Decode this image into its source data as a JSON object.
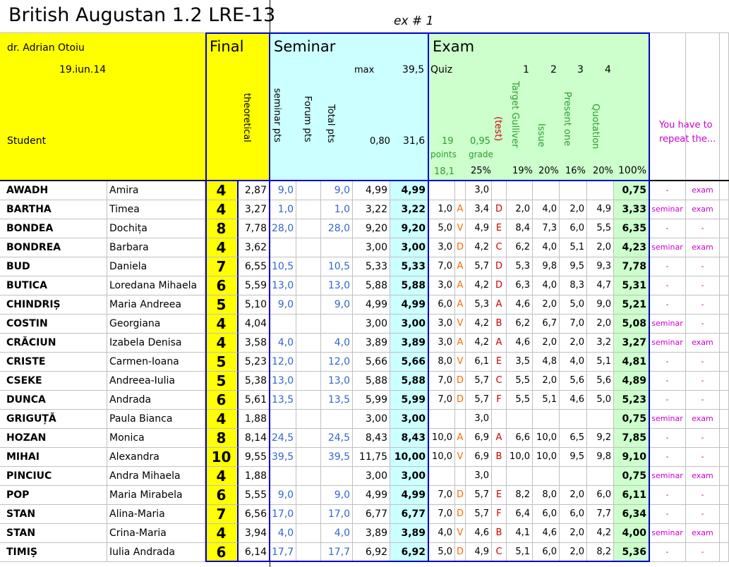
{
  "header": {
    "title": "British Augustan 1.2 LRE-13",
    "exercise": "ex # 1",
    "teacher": "dr. Adrian Otoiu",
    "date": "19.iun.14",
    "student_label": "Student",
    "final": "Final",
    "theoretical": "theoretical",
    "seminar": "Seminar",
    "max_label": "max",
    "max_value": "39,5",
    "seminar_pts": "seminar pts",
    "forum_pts": "Forum pts",
    "total_pts": "Total pts",
    "seminar_coef": "0,80",
    "seminar_total": "31,6",
    "exam": "Exam",
    "quiz": "Quiz",
    "items": [
      "1",
      "2",
      "3",
      "4"
    ],
    "quiz_points": "19",
    "points": "points",
    "quiz_avg": "18,1",
    "grade_coef": "0,95",
    "grade": "grade",
    "test": "(test)",
    "target": "Target Gulliver",
    "issue": "Issue",
    "present": "Present one",
    "quotation": "Quotation",
    "weights": [
      "25%",
      "19%",
      "20%",
      "16%",
      "20%",
      "100%"
    ],
    "repeat": "You have to repeat the..."
  },
  "rows": [
    [
      "AWADH",
      "Amira",
      "4",
      "2,87",
      "9,0",
      null,
      "9,0",
      "4,99",
      "4,99",
      null,
      null,
      "3,0",
      null,
      null,
      null,
      null,
      null,
      "0,75",
      "-",
      "exam"
    ],
    [
      "BARTHA",
      "Timea",
      "4",
      "3,27",
      "1,0",
      null,
      "1,0",
      "3,22",
      "3,22",
      "1,0",
      "A",
      "3,4",
      "D",
      "2,0",
      "4,0",
      "2,0",
      "4,9",
      "3,33",
      "seminar",
      "exam"
    ],
    [
      "BONDEA",
      "Dochița",
      "8",
      "7,78",
      "28,0",
      null,
      "28,0",
      "9,20",
      "9,20",
      "5,0",
      "V",
      "4,9",
      "E",
      "8,4",
      "7,3",
      "6,0",
      "5,5",
      "6,35",
      "-",
      "-"
    ],
    [
      "BONDREA",
      "Barbara",
      "4",
      "3,62",
      null,
      null,
      null,
      "3,00",
      "3,00",
      "3,0",
      "D",
      "4,2",
      "C",
      "6,2",
      "4,0",
      "5,1",
      "2,0",
      "4,23",
      "seminar",
      "exam"
    ],
    [
      "BUD",
      "Daniela",
      "7",
      "6,55",
      "10,5",
      null,
      "10,5",
      "5,33",
      "5,33",
      "7,0",
      "A",
      "5,7",
      "D",
      "5,3",
      "9,8",
      "9,5",
      "9,3",
      "7,78",
      "-",
      "-"
    ],
    [
      "BUTICA",
      "Loredana Mihaela",
      "6",
      "5,59",
      "13,0",
      null,
      "13,0",
      "5,88",
      "5,88",
      "3,0",
      "A",
      "4,2",
      "D",
      "6,3",
      "4,0",
      "8,3",
      "4,7",
      "5,31",
      "-",
      "-"
    ],
    [
      "CHINDRIȘ",
      "Maria Andreea",
      "5",
      "5,10",
      "9,0",
      null,
      "9,0",
      "4,99",
      "4,99",
      "6,0",
      "A",
      "5,3",
      "A",
      "4,6",
      "2,0",
      "5,0",
      "9,0",
      "5,21",
      "-",
      "-"
    ],
    [
      "COSTIN",
      "Georgiana",
      "4",
      "4,04",
      null,
      null,
      null,
      "3,00",
      "3,00",
      "3,0",
      "V",
      "4,2",
      "B",
      "6,2",
      "6,7",
      "7,0",
      "2,0",
      "5,08",
      "seminar",
      "-"
    ],
    [
      "CRĂCIUN",
      "Izabela Denisa",
      "4",
      "3,58",
      "4,0",
      null,
      "4,0",
      "3,89",
      "3,89",
      "3,0",
      "A",
      "4,2",
      "A",
      "4,6",
      "2,0",
      "2,0",
      "3,2",
      "3,27",
      "seminar",
      "exam"
    ],
    [
      "CRISTE",
      "Carmen-Ioana",
      "5",
      "5,23",
      "12,0",
      null,
      "12,0",
      "5,66",
      "5,66",
      "8,0",
      "V",
      "6,1",
      "E",
      "3,5",
      "4,8",
      "4,0",
      "5,1",
      "4,81",
      "-",
      "-"
    ],
    [
      "CSEKE",
      "Andreea-Iulia",
      "5",
      "5,38",
      "13,0",
      null,
      "13,0",
      "5,88",
      "5,88",
      "7,0",
      "D",
      "5,7",
      "C",
      "5,5",
      "2,0",
      "5,6",
      "5,6",
      "4,89",
      "-",
      "-"
    ],
    [
      "DUNCA",
      "Andrada",
      "6",
      "5,61",
      "13,5",
      null,
      "13,5",
      "5,99",
      "5,99",
      "7,0",
      "D",
      "5,7",
      "F",
      "5,5",
      "5,1",
      "4,6",
      "5,0",
      "5,23",
      "-",
      "-"
    ],
    [
      "GRIGUȚĂ",
      "Paula Bianca",
      "4",
      "1,88",
      null,
      null,
      null,
      "3,00",
      "3,00",
      null,
      null,
      "3,0",
      null,
      null,
      null,
      null,
      null,
      "0,75",
      "seminar",
      "exam"
    ],
    [
      "HOZAN",
      "Monica",
      "8",
      "8,14",
      "24,5",
      null,
      "24,5",
      "8,43",
      "8,43",
      "10,0",
      "A",
      "6,9",
      "A",
      "6,6",
      "10,0",
      "6,5",
      "9,2",
      "7,85",
      "-",
      "-"
    ],
    [
      "MIHAI",
      "Alexandra",
      "10",
      "9,55",
      "39,5",
      null,
      "39,5",
      "11,75",
      "10,00",
      "10,0",
      "V",
      "6,9",
      "B",
      "10,0",
      "10,0",
      "9,5",
      "9,8",
      "9,10",
      "-",
      "-"
    ],
    [
      "PINCIUC",
      "Andra Mihaela",
      "4",
      "1,88",
      null,
      null,
      null,
      "3,00",
      "3,00",
      null,
      null,
      "3,0",
      null,
      null,
      null,
      null,
      null,
      "0,75",
      "seminar",
      "exam"
    ],
    [
      "POP",
      "Maria Mirabela",
      "6",
      "5,55",
      "9,0",
      null,
      "9,0",
      "4,99",
      "4,99",
      "7,0",
      "D",
      "5,7",
      "E",
      "8,2",
      "8,0",
      "2,0",
      "6,0",
      "6,11",
      "-",
      "-"
    ],
    [
      "STAN",
      "Alina-Maria",
      "7",
      "6,56",
      "17,0",
      null,
      "17,0",
      "6,77",
      "6,77",
      "7,0",
      "D",
      "5,7",
      "F",
      "6,4",
      "6,0",
      "6,0",
      "7,7",
      "6,34",
      "-",
      "-"
    ],
    [
      "STAN",
      "Crina-Maria",
      "4",
      "3,94",
      "4,0",
      null,
      "4,0",
      "3,89",
      "3,89",
      "4,0",
      "V",
      "4,6",
      "B",
      "4,1",
      "4,6",
      "2,0",
      "4,2",
      "4,00",
      "seminar",
      "exam"
    ],
    [
      "TIMIȘ",
      "Iulia Andrada",
      "6",
      "6,14",
      "17,7",
      null,
      "17,7",
      "6,92",
      "6,92",
      "5,0",
      "D",
      "4,9",
      "C",
      "5,1",
      "6,0",
      "2,0",
      "8,2",
      "5,36",
      "-",
      "-"
    ]
  ]
}
